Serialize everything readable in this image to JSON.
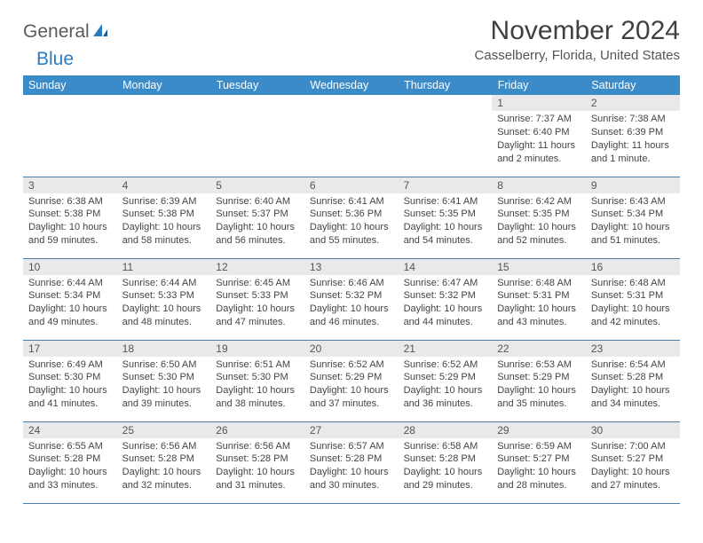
{
  "brand": {
    "word1": "General",
    "word2": "Blue"
  },
  "title": "November 2024",
  "location": "Casselberry, Florida, United States",
  "colors": {
    "header_bg": "#3b8bc8",
    "header_text": "#ffffff",
    "daynum_bg": "#e9e9e9",
    "row_border": "#4a7ba5",
    "title_color": "#404040",
    "body_text": "#444444",
    "logo_gray": "#5a5a5a",
    "logo_blue": "#2b7bbf"
  },
  "typography": {
    "title_size_pt": 30,
    "location_size_pt": 15,
    "weekday_size_pt": 12.5,
    "daynum_size_pt": 12,
    "cell_size_pt": 11
  },
  "weekdays": [
    "Sunday",
    "Monday",
    "Tuesday",
    "Wednesday",
    "Thursday",
    "Friday",
    "Saturday"
  ],
  "weeks": [
    [
      {
        "empty": true
      },
      {
        "empty": true
      },
      {
        "empty": true
      },
      {
        "empty": true
      },
      {
        "empty": true
      },
      {
        "n": "1",
        "sunrise": "7:37 AM",
        "sunset": "6:40 PM",
        "daylight": "11 hours and 2 minutes."
      },
      {
        "n": "2",
        "sunrise": "7:38 AM",
        "sunset": "6:39 PM",
        "daylight": "11 hours and 1 minute."
      }
    ],
    [
      {
        "n": "3",
        "sunrise": "6:38 AM",
        "sunset": "5:38 PM",
        "daylight": "10 hours and 59 minutes."
      },
      {
        "n": "4",
        "sunrise": "6:39 AM",
        "sunset": "5:38 PM",
        "daylight": "10 hours and 58 minutes."
      },
      {
        "n": "5",
        "sunrise": "6:40 AM",
        "sunset": "5:37 PM",
        "daylight": "10 hours and 56 minutes."
      },
      {
        "n": "6",
        "sunrise": "6:41 AM",
        "sunset": "5:36 PM",
        "daylight": "10 hours and 55 minutes."
      },
      {
        "n": "7",
        "sunrise": "6:41 AM",
        "sunset": "5:35 PM",
        "daylight": "10 hours and 54 minutes."
      },
      {
        "n": "8",
        "sunrise": "6:42 AM",
        "sunset": "5:35 PM",
        "daylight": "10 hours and 52 minutes."
      },
      {
        "n": "9",
        "sunrise": "6:43 AM",
        "sunset": "5:34 PM",
        "daylight": "10 hours and 51 minutes."
      }
    ],
    [
      {
        "n": "10",
        "sunrise": "6:44 AM",
        "sunset": "5:34 PM",
        "daylight": "10 hours and 49 minutes."
      },
      {
        "n": "11",
        "sunrise": "6:44 AM",
        "sunset": "5:33 PM",
        "daylight": "10 hours and 48 minutes."
      },
      {
        "n": "12",
        "sunrise": "6:45 AM",
        "sunset": "5:33 PM",
        "daylight": "10 hours and 47 minutes."
      },
      {
        "n": "13",
        "sunrise": "6:46 AM",
        "sunset": "5:32 PM",
        "daylight": "10 hours and 46 minutes."
      },
      {
        "n": "14",
        "sunrise": "6:47 AM",
        "sunset": "5:32 PM",
        "daylight": "10 hours and 44 minutes."
      },
      {
        "n": "15",
        "sunrise": "6:48 AM",
        "sunset": "5:31 PM",
        "daylight": "10 hours and 43 minutes."
      },
      {
        "n": "16",
        "sunrise": "6:48 AM",
        "sunset": "5:31 PM",
        "daylight": "10 hours and 42 minutes."
      }
    ],
    [
      {
        "n": "17",
        "sunrise": "6:49 AM",
        "sunset": "5:30 PM",
        "daylight": "10 hours and 41 minutes."
      },
      {
        "n": "18",
        "sunrise": "6:50 AM",
        "sunset": "5:30 PM",
        "daylight": "10 hours and 39 minutes."
      },
      {
        "n": "19",
        "sunrise": "6:51 AM",
        "sunset": "5:30 PM",
        "daylight": "10 hours and 38 minutes."
      },
      {
        "n": "20",
        "sunrise": "6:52 AM",
        "sunset": "5:29 PM",
        "daylight": "10 hours and 37 minutes."
      },
      {
        "n": "21",
        "sunrise": "6:52 AM",
        "sunset": "5:29 PM",
        "daylight": "10 hours and 36 minutes."
      },
      {
        "n": "22",
        "sunrise": "6:53 AM",
        "sunset": "5:29 PM",
        "daylight": "10 hours and 35 minutes."
      },
      {
        "n": "23",
        "sunrise": "6:54 AM",
        "sunset": "5:28 PM",
        "daylight": "10 hours and 34 minutes."
      }
    ],
    [
      {
        "n": "24",
        "sunrise": "6:55 AM",
        "sunset": "5:28 PM",
        "daylight": "10 hours and 33 minutes."
      },
      {
        "n": "25",
        "sunrise": "6:56 AM",
        "sunset": "5:28 PM",
        "daylight": "10 hours and 32 minutes."
      },
      {
        "n": "26",
        "sunrise": "6:56 AM",
        "sunset": "5:28 PM",
        "daylight": "10 hours and 31 minutes."
      },
      {
        "n": "27",
        "sunrise": "6:57 AM",
        "sunset": "5:28 PM",
        "daylight": "10 hours and 30 minutes."
      },
      {
        "n": "28",
        "sunrise": "6:58 AM",
        "sunset": "5:28 PM",
        "daylight": "10 hours and 29 minutes."
      },
      {
        "n": "29",
        "sunrise": "6:59 AM",
        "sunset": "5:27 PM",
        "daylight": "10 hours and 28 minutes."
      },
      {
        "n": "30",
        "sunrise": "7:00 AM",
        "sunset": "5:27 PM",
        "daylight": "10 hours and 27 minutes."
      }
    ]
  ],
  "labels": {
    "sunrise": "Sunrise: ",
    "sunset": "Sunset: ",
    "daylight": "Daylight: "
  }
}
